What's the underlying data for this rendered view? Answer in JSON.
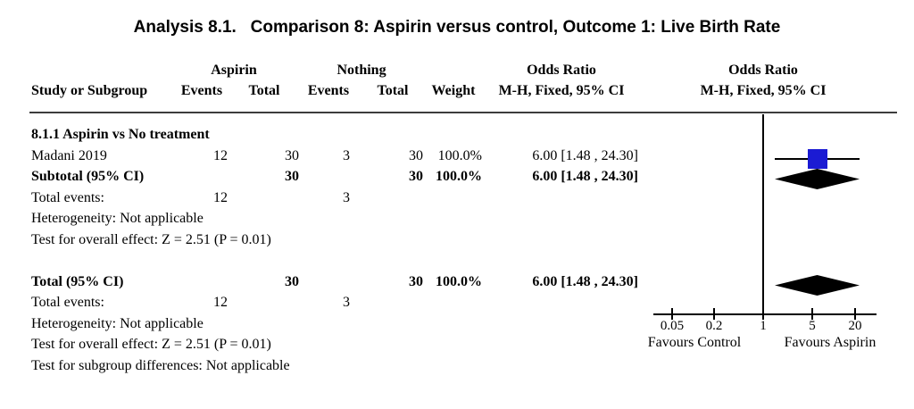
{
  "title": "Analysis 8.1.   Comparison 8: Aspirin versus control, Outcome 1: Live Birth Rate",
  "header": {
    "group_aspirin": "Aspirin",
    "group_nothing": "Nothing",
    "odds_ratio": "Odds Ratio",
    "method_ci": "M-H, Fixed, 95% CI",
    "study_or_subgroup": "Study or Subgroup",
    "events": "Events",
    "total": "Total",
    "weight": "Weight"
  },
  "subgroup_section": {
    "heading": "8.1.1 Aspirin vs No treatment",
    "study": {
      "name": "Madani 2019",
      "e1": "12",
      "t1": "30",
      "e2": "3",
      "t2": "30",
      "weight": "100.0%",
      "or_ci": "6.00 [1.48 , 24.30]"
    },
    "subtotal": {
      "label": "Subtotal (95% CI)",
      "t1": "30",
      "t2": "30",
      "weight": "100.0%",
      "or_ci": "6.00 [1.48 , 24.30]"
    },
    "total_events": {
      "label": "Total events:",
      "e1": "12",
      "e2": "3"
    },
    "heterogeneity": "Heterogeneity: Not applicable",
    "overall_effect": "Test for overall effect: Z = 2.51 (P = 0.01)"
  },
  "total_section": {
    "total": {
      "label": "Total (95% CI)",
      "t1": "30",
      "t2": "30",
      "weight": "100.0%",
      "or_ci": "6.00 [1.48 , 24.30]"
    },
    "total_events": {
      "label": "Total events:",
      "e1": "12",
      "e2": "3"
    },
    "heterogeneity": "Heterogeneity: Not applicable",
    "overall_effect": "Test for overall effect: Z = 2.51 (P = 0.01)",
    "subgroup_diff": "Test for subgroup differences: Not applicable"
  },
  "axis": {
    "ticks": [
      "0.05",
      "0.2",
      "1",
      "5",
      "20"
    ],
    "favours_left": "Favours Control",
    "favours_right": "Favours Aspirin"
  },
  "colors": {
    "study_marker": "#1b1bd3",
    "summary_diamond": "#000000",
    "rule": "#3d3d3d"
  },
  "chart_data": {
    "type": "scatter",
    "subtype": "forest_plot",
    "title": "Analysis 8.1. Comparison 8: Aspirin versus control, Outcome 1: Live Birth Rate",
    "effect_measure": "Odds Ratio, M-H, Fixed, 95% CI",
    "x_scale": "log",
    "x_ticks": [
      0.05,
      0.2,
      1,
      5,
      20
    ],
    "axis_labels": {
      "left": "Favours Control",
      "right": "Favours Aspirin"
    },
    "subgroups": [
      {
        "name": "8.1.1 Aspirin vs No treatment",
        "studies": [
          {
            "study": "Madani 2019",
            "events_treatment": 12,
            "total_treatment": 30,
            "events_control": 3,
            "total_control": 30,
            "weight_pct": 100.0,
            "or": 6.0,
            "ci_low": 1.48,
            "ci_high": 24.3,
            "marker": "blue-square"
          }
        ],
        "subtotal": {
          "total_treatment": 30,
          "total_control": 30,
          "weight_pct": 100.0,
          "or": 6.0,
          "ci_low": 1.48,
          "ci_high": 24.3,
          "marker": "black-diamond",
          "total_events_treatment": 12,
          "total_events_control": 3,
          "heterogeneity": "Not applicable",
          "overall_effect_z": 2.51,
          "overall_effect_p": 0.01
        }
      }
    ],
    "total": {
      "total_treatment": 30,
      "total_control": 30,
      "weight_pct": 100.0,
      "or": 6.0,
      "ci_low": 1.48,
      "ci_high": 24.3,
      "marker": "black-diamond",
      "total_events_treatment": 12,
      "total_events_control": 3,
      "heterogeneity": "Not applicable",
      "overall_effect_z": 2.51,
      "overall_effect_p": 0.01,
      "subgroup_differences": "Not applicable"
    }
  }
}
